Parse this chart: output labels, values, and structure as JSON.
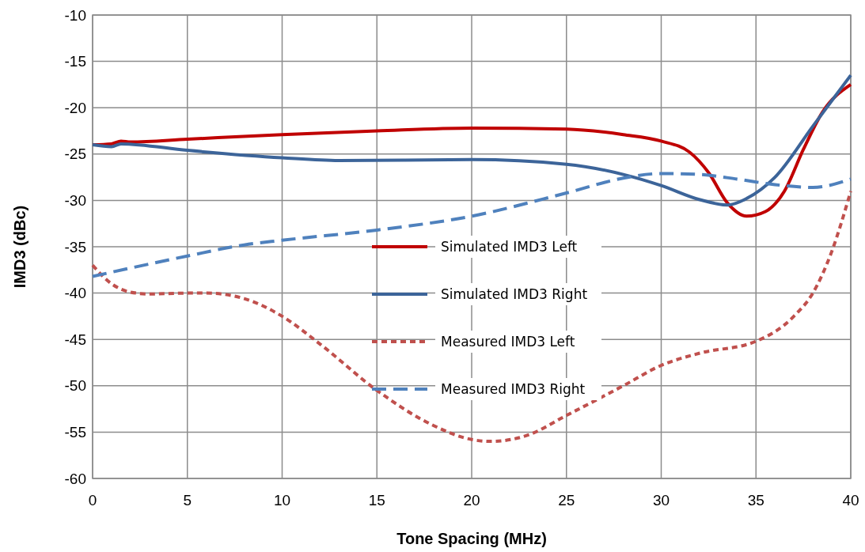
{
  "chart_data": {
    "type": "line",
    "xlabel": "Tone Spacing  (MHz)",
    "ylabel": "IMD3 (dBc)",
    "xlim": [
      0,
      40
    ],
    "xticks": [
      0,
      5,
      10,
      15,
      20,
      25,
      30,
      35,
      40
    ],
    "ylim": [
      -60,
      -10
    ],
    "yticks": [
      -60,
      -55,
      -50,
      -45,
      -40,
      -35,
      -30,
      -25,
      -20,
      -15,
      -10
    ],
    "grid": true,
    "legend": "center",
    "marker": "none",
    "series": [
      {
        "name": "Simulated IMD3 Left",
        "color": "#c00000",
        "line_style": "solid",
        "x": [
          0,
          1,
          1.5,
          2,
          5,
          10,
          15,
          20,
          25,
          28,
          30,
          31.5,
          32.5,
          33.5,
          34.5,
          35.5,
          36.5,
          37.5,
          38.5,
          40
        ],
        "values": [
          -24,
          -23.9,
          -23.6,
          -23.7,
          -23.4,
          -22.9,
          -22.5,
          -22.2,
          -22.3,
          -22.9,
          -23.6,
          -24.8,
          -27,
          -30.3,
          -31.7,
          -31.2,
          -29,
          -24.5,
          -20.5,
          -17.5
        ]
      },
      {
        "name": "Simulated IMD3 Right",
        "color": "#3c6499",
        "line_style": "solid",
        "x": [
          0,
          1,
          1.5,
          5,
          10,
          13,
          20,
          25,
          28,
          30,
          32,
          33.5,
          34.5,
          36,
          38,
          40
        ],
        "values": [
          -24,
          -24.2,
          -23.9,
          -24.6,
          -25.4,
          -25.7,
          -25.6,
          -26.1,
          -27.2,
          -28.4,
          -29.9,
          -30.5,
          -29.8,
          -27.5,
          -22,
          -16.5
        ]
      },
      {
        "name": "Measured IMD3 Left",
        "color": "#c0504d",
        "line_style": "dotted",
        "x": [
          0,
          1,
          2,
          3,
          5,
          6,
          8,
          10,
          12,
          15,
          18,
          20,
          21,
          23,
          25,
          28,
          30,
          32,
          35,
          37,
          38,
          39,
          40
        ],
        "values": [
          -37,
          -39,
          -39.9,
          -40.1,
          -40,
          -40,
          -40.6,
          -42.5,
          -45.5,
          -50.5,
          -54.3,
          -55.8,
          -56,
          -55.3,
          -53.2,
          -50,
          -47.8,
          -46.5,
          -45.2,
          -42.5,
          -40,
          -35.5,
          -29
        ]
      },
      {
        "name": "Measured IMD3 Right",
        "color": "#4f81bd",
        "line_style": "dashed",
        "x": [
          0,
          2,
          5,
          8,
          10,
          15,
          20,
          25,
          28,
          30,
          32,
          34,
          36,
          38,
          40
        ],
        "values": [
          -38.2,
          -37.3,
          -36,
          -34.8,
          -34.3,
          -33.2,
          -31.7,
          -29.2,
          -27.6,
          -27.1,
          -27.2,
          -27.7,
          -28.3,
          -28.6,
          -27.7
        ]
      }
    ]
  }
}
